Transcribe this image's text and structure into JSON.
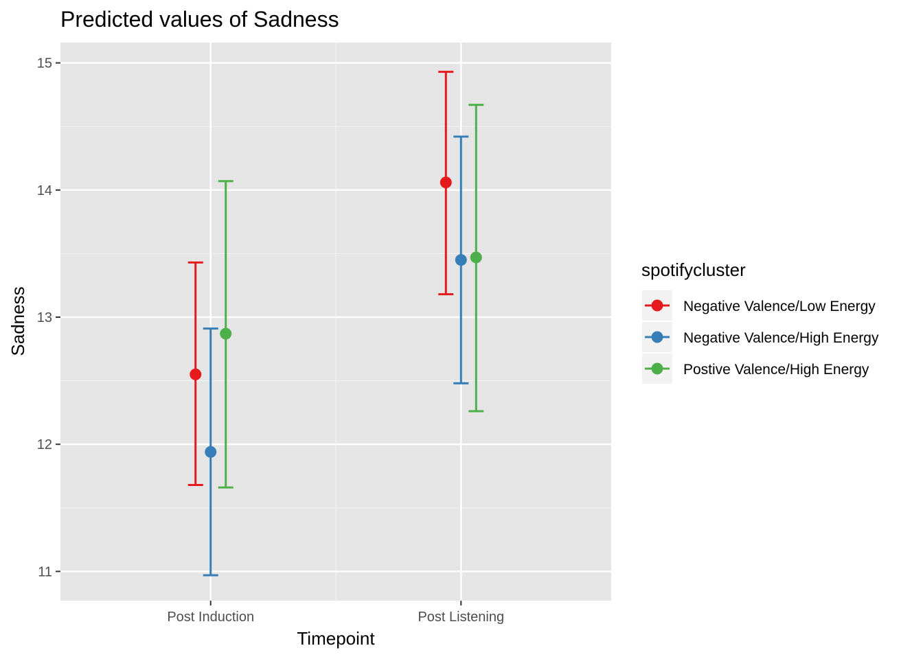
{
  "chart_data": {
    "type": "scatter",
    "subtype": "point-with-error-bars",
    "title": "Predicted values of Sadness",
    "xlabel": "Timepoint",
    "ylabel": "Sadness",
    "categories": [
      "Post Induction",
      "Post Listening"
    ],
    "y_ticks": [
      "11",
      "12",
      "13",
      "14",
      "15"
    ],
    "ylim": [
      10.77,
      15.16
    ],
    "grid": true,
    "legend": {
      "title": "spotifycluster",
      "position": "right"
    },
    "series": [
      {
        "name": "Negative Valence/Low Energy",
        "color": "#e41a1c",
        "values": [
          12.55,
          14.06
        ],
        "lower": [
          11.68,
          13.18
        ],
        "upper": [
          13.43,
          14.93
        ]
      },
      {
        "name": "Negative Valence/High Energy",
        "color": "#377eb8",
        "values": [
          11.94,
          13.45
        ],
        "lower": [
          10.97,
          12.48
        ],
        "upper": [
          12.91,
          14.42
        ]
      },
      {
        "name": "Postive Valence/High Energy",
        "color": "#4daf4a",
        "values": [
          12.87,
          13.47
        ],
        "lower": [
          11.66,
          12.26
        ],
        "upper": [
          14.07,
          14.67
        ]
      }
    ]
  }
}
